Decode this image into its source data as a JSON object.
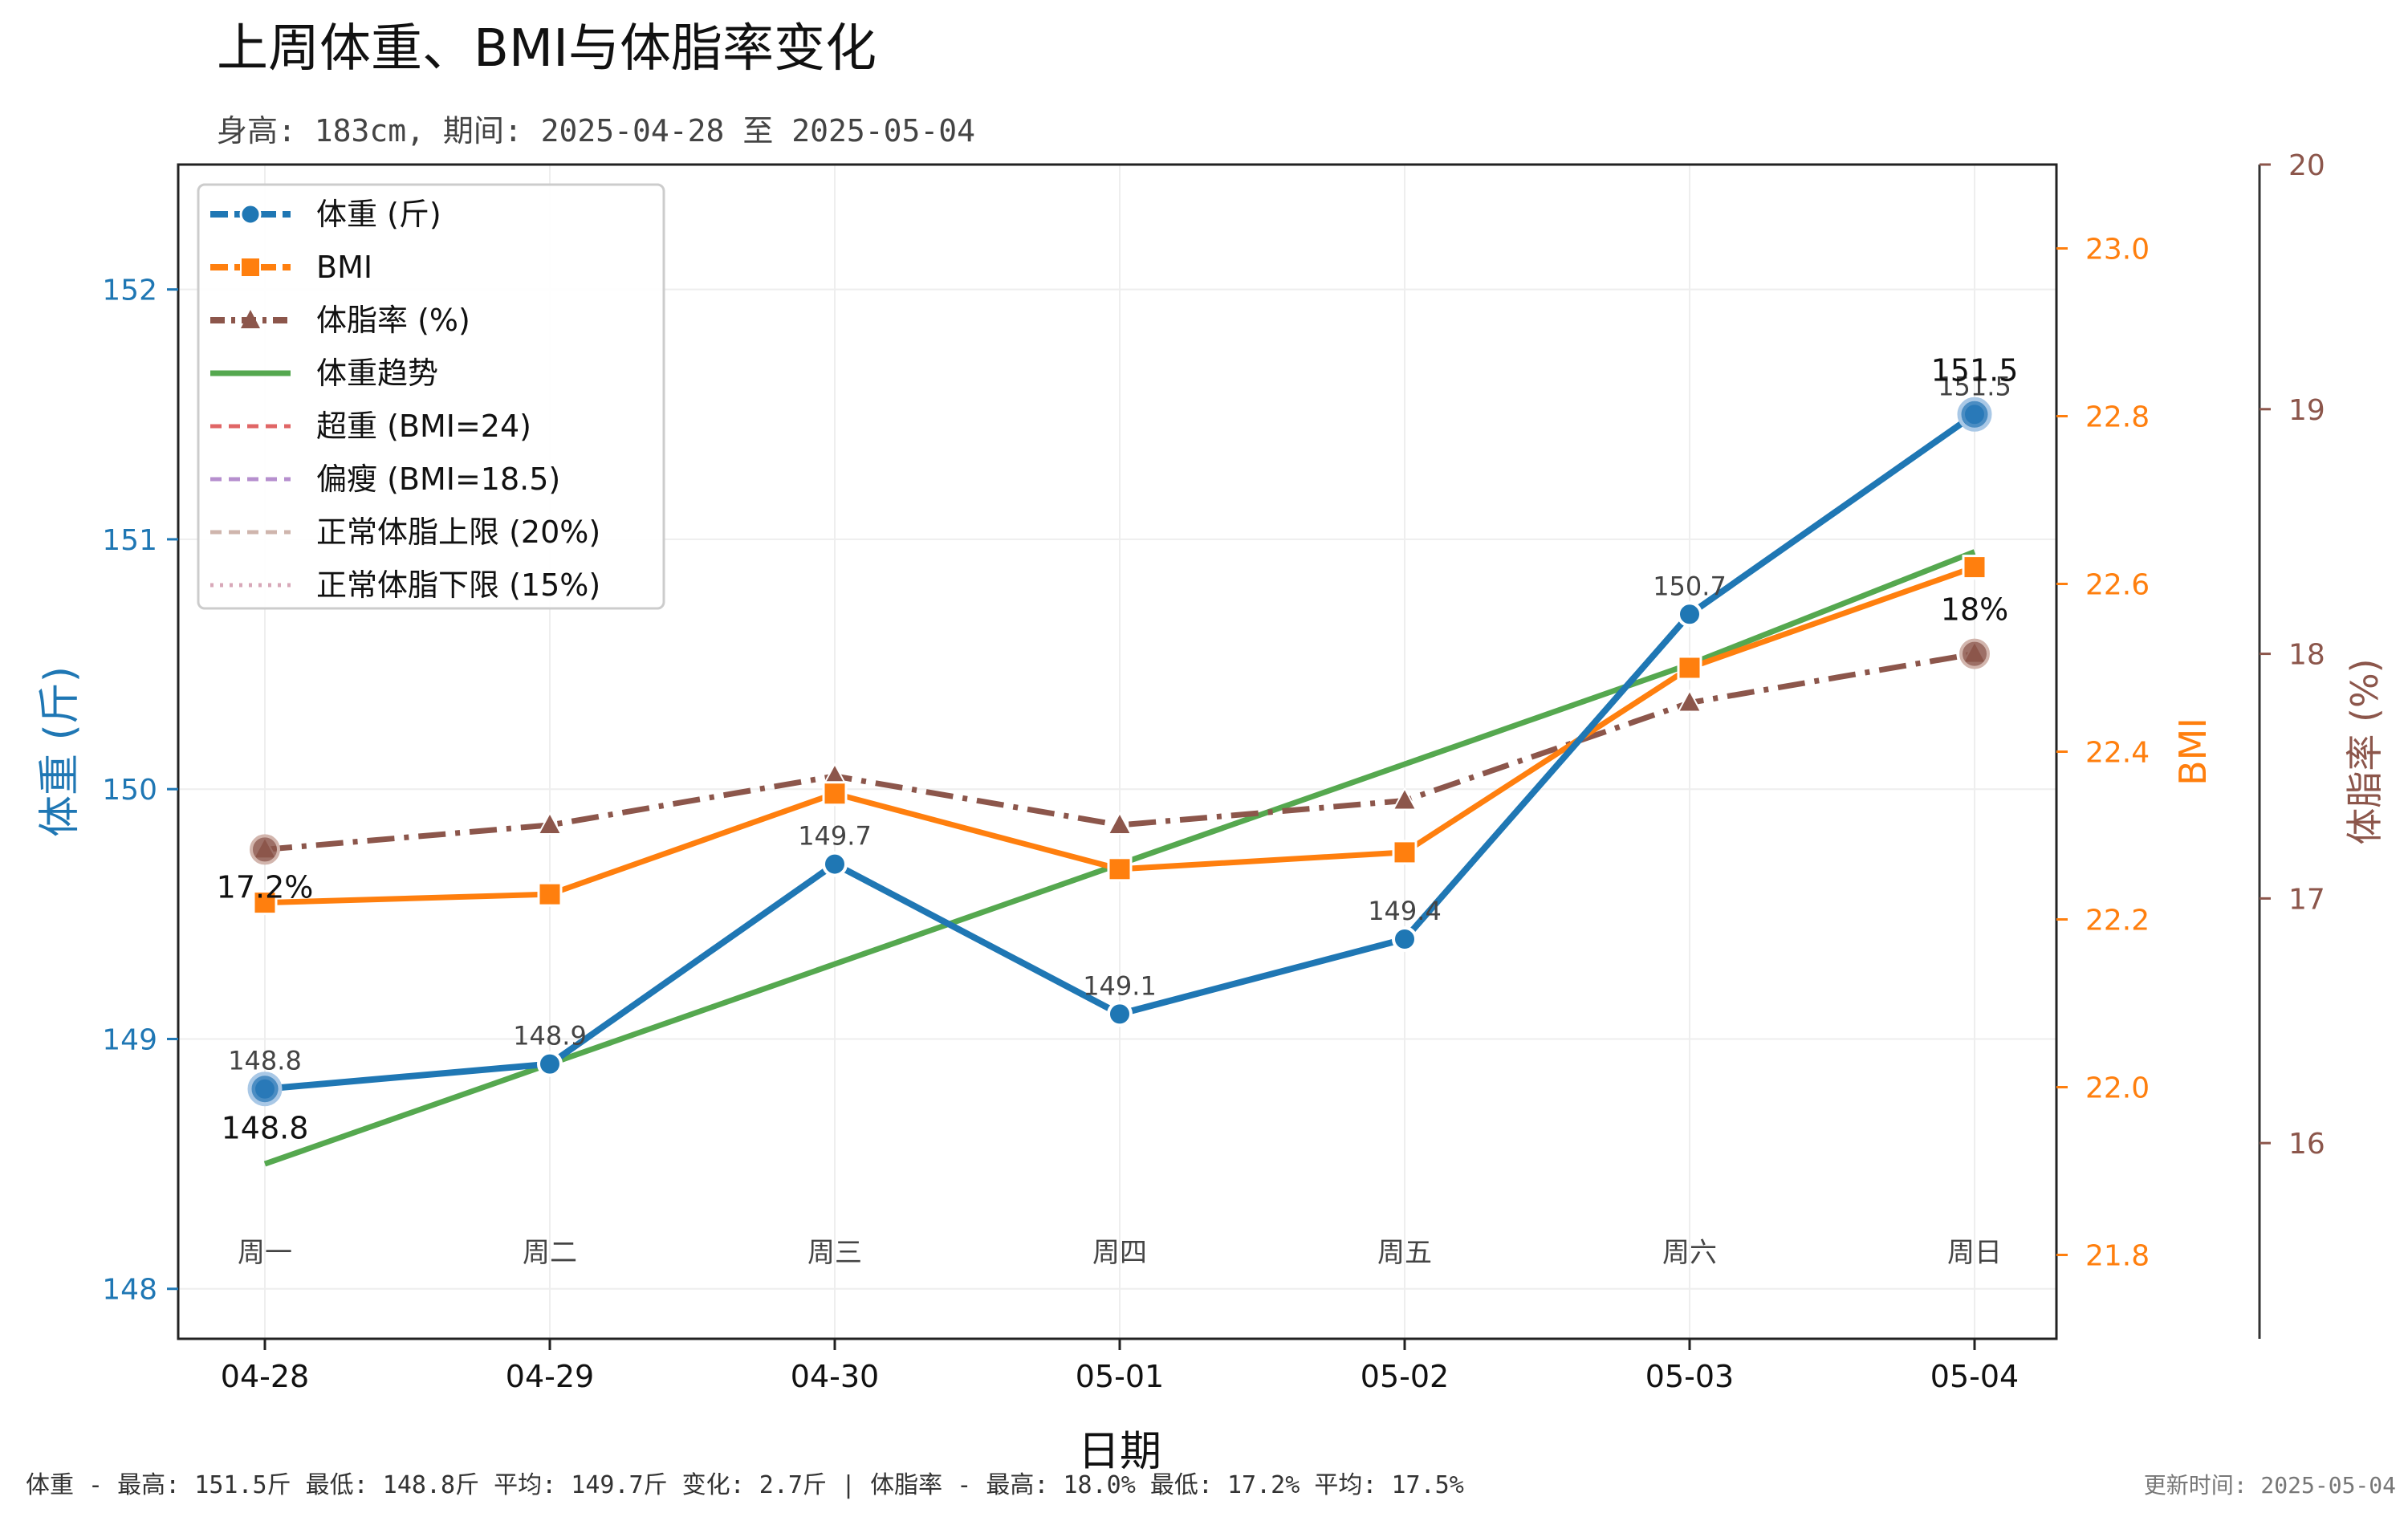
{
  "chart_data": {
    "type": "line",
    "title": "上周体重、BMI与体脂率变化",
    "subtitle": "身高: 183cm, 期间: 2025-04-28 至 2025-05-04",
    "xlabel": "日期",
    "categories": [
      "04-28",
      "04-29",
      "04-30",
      "05-01",
      "05-02",
      "05-03",
      "05-04"
    ],
    "weekday_labels": [
      "周一",
      "周二",
      "周三",
      "周四",
      "周五",
      "周六",
      "周日"
    ],
    "axes": {
      "weight": {
        "label": "体重 (斤)",
        "ylim": [
          147.8,
          152.5
        ],
        "ticks": [
          148,
          149,
          150,
          151,
          152
        ],
        "color": "#1f77b4"
      },
      "bmi": {
        "label": "BMI",
        "ylim": [
          21.7,
          23.1
        ],
        "ticks": [
          "21.8",
          "22.0",
          "22.2",
          "22.4",
          "22.6",
          "22.8",
          "23.0"
        ],
        "color": "#ff7f0e"
      },
      "fat": {
        "label": "体脂率 (%)",
        "ylim": [
          15.2,
          20.0
        ],
        "ticks": [
          16,
          17,
          18,
          19,
          20
        ],
        "color": "#8c564b"
      }
    },
    "series": [
      {
        "key": "weight",
        "name": "体重 (斤)",
        "values": [
          148.8,
          148.9,
          149.7,
          149.1,
          149.4,
          150.7,
          151.5
        ],
        "color": "#1f77b4",
        "point_labels": [
          "148.8",
          "148.9",
          "149.7",
          "149.1",
          "149.4",
          "150.7",
          "151.5"
        ]
      },
      {
        "key": "bmi",
        "name": "BMI",
        "values": [
          22.22,
          22.23,
          22.35,
          22.26,
          22.28,
          22.5,
          22.62
        ],
        "color": "#ff7f0e"
      },
      {
        "key": "fat",
        "name": "体脂率 (%)",
        "values": [
          17.2,
          17.3,
          17.5,
          17.3,
          17.4,
          17.8,
          18.0
        ],
        "color": "#8c564b"
      },
      {
        "key": "trend",
        "name": "体重趋势",
        "values": [
          148.5,
          148.9,
          149.3,
          149.7,
          150.1,
          150.5,
          150.95
        ],
        "color": "#55a84f"
      }
    ],
    "reference_lines": [
      {
        "name": "超重 (BMI=24)",
        "color": "#e06666",
        "dash": "dashed"
      },
      {
        "name": "偏瘦 (BMI=18.5)",
        "color": "#b68fce",
        "dash": "dashed"
      },
      {
        "name": "正常体脂上限 (20%)",
        "color": "#cfb5ad",
        "dash": "dashed"
      },
      {
        "name": "正常体脂下限 (15%)",
        "color": "#d8a8b8",
        "dash": "dotted"
      }
    ],
    "annotations": {
      "weight_min": "148.8",
      "weight_max": "151.5",
      "fat_min": "17.2%",
      "fat_max": "18%"
    },
    "legend_position": "top-left",
    "grid": true
  },
  "footer": {
    "stats": "体重 - 最高: 151.5斤 最低: 148.8斤 平均: 149.7斤 变化: 2.7斤 | 体脂率 - 最高: 18.0% 最低: 17.2% 平均: 17.5%",
    "updated": "更新时间: 2025-05-04"
  }
}
